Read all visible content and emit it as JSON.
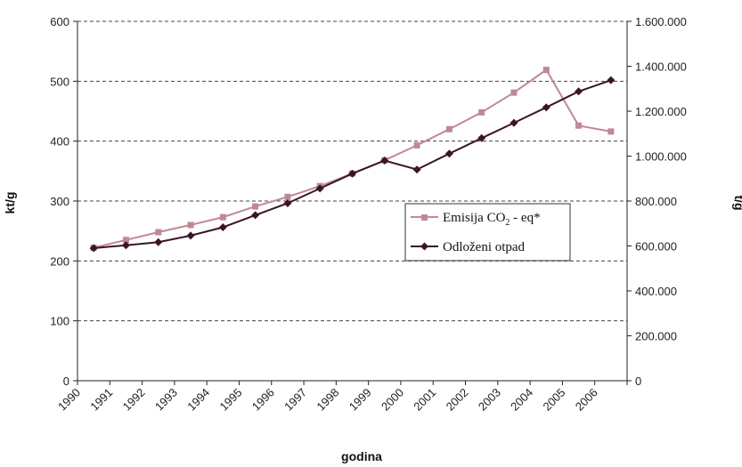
{
  "chart_data": {
    "type": "line",
    "xlabel": "godina",
    "ylabel_left": "kt/g",
    "ylabel_right": "t/g",
    "categories": [
      "1990",
      "1991",
      "1992",
      "1993",
      "1994",
      "1995",
      "1996",
      "1997",
      "1998",
      "1999",
      "2000",
      "2001",
      "2002",
      "2003",
      "2004",
      "2005",
      "2006"
    ],
    "y_left": {
      "lim": [
        0,
        600
      ],
      "ticks": [
        0,
        100,
        200,
        300,
        400,
        500,
        600
      ],
      "tick_labels": [
        "0",
        "100",
        "200",
        "300",
        "400",
        "500",
        "600"
      ]
    },
    "y_right": {
      "lim": [
        0,
        1600000
      ],
      "ticks": [
        0,
        200000,
        400000,
        600000,
        800000,
        1000000,
        1200000,
        1400000,
        1600000
      ],
      "tick_labels": [
        "0",
        "200.000",
        "400.000",
        "600.000",
        "800.000",
        "1.000.000",
        "1.200.000",
        "1.400.000",
        "1.600.000"
      ]
    },
    "grid": "horizontal-dashed",
    "legend_position": "center-right",
    "series": [
      {
        "name": "Emisija CO2 - eq*",
        "axis": "left",
        "color": "#c08894",
        "marker": "square",
        "values": [
          222,
          235,
          248,
          260,
          273,
          291,
          307,
          325,
          346,
          368,
          393,
          420,
          448,
          481,
          519,
          426,
          416
        ]
      },
      {
        "name": "Odloženi otpad",
        "axis": "right",
        "color": "#3a1428",
        "marker": "diamond",
        "values": [
          590000,
          603000,
          617000,
          646000,
          683000,
          737000,
          790000,
          856000,
          922000,
          980000,
          940000,
          1011000,
          1080000,
          1148000,
          1217000,
          1288000,
          1338000
        ]
      }
    ],
    "legend": {
      "entries": [
        {
          "main": "Emisija CO",
          "sub": "2",
          "tail": " - eq*"
        },
        {
          "main": "Odloženi otpad",
          "sub": "",
          "tail": ""
        }
      ]
    }
  }
}
